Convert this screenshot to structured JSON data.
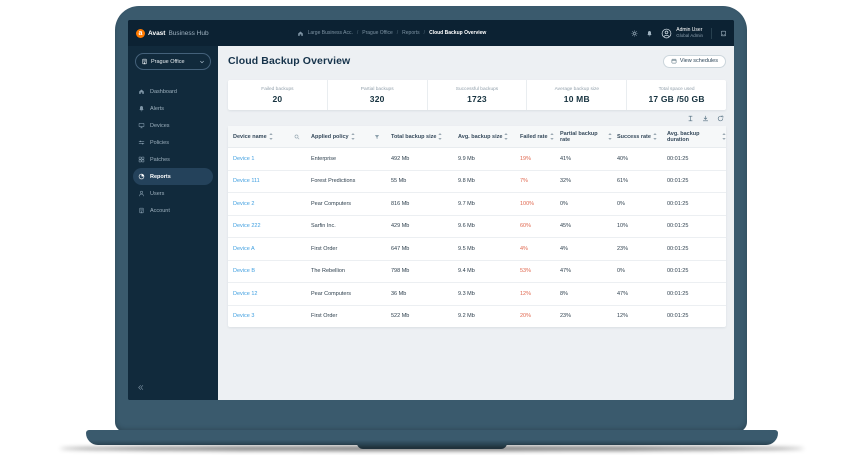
{
  "colors": {
    "accent_orange": "#ff7a00",
    "link_blue": "#3f9fe0",
    "failed_red": "#e0674e",
    "frame": "#3a5a6d",
    "topbar": "#0c2233",
    "sidebar": "#112a3c",
    "active_item_bg": "#24425b",
    "main_bg": "#edf0f3"
  },
  "app": {
    "logo_letter": "a",
    "brand_primary": "Avast",
    "brand_secondary": "Business Hub",
    "breadcrumb": [
      "Large Business Acc.",
      "Prague Office",
      "Reports",
      "Cloud Backup Overview"
    ],
    "user_name": "Admin User",
    "user_role": "Global Admin"
  },
  "sidebar": {
    "org_selector": "Prague Office",
    "items": [
      {
        "label": "Dashboard",
        "icon": "home-icon",
        "active": false
      },
      {
        "label": "Alerts",
        "icon": "bell-icon",
        "active": false
      },
      {
        "label": "Devices",
        "icon": "monitor-icon",
        "active": false
      },
      {
        "label": "Policies",
        "icon": "sliders-icon",
        "active": false
      },
      {
        "label": "Patches",
        "icon": "patch-icon",
        "active": false
      },
      {
        "label": "Reports",
        "icon": "report-icon",
        "active": true
      },
      {
        "label": "Users",
        "icon": "user-icon",
        "active": false
      },
      {
        "label": "Account",
        "icon": "building-icon",
        "active": false
      }
    ]
  },
  "page": {
    "title": "Cloud Backup Overview",
    "view_schedules": "View schedules"
  },
  "stats": [
    {
      "label": "Failed backups",
      "value": "20"
    },
    {
      "label": "Partial backups",
      "value": "320"
    },
    {
      "label": "Successful backups",
      "value": "1723"
    },
    {
      "label": "Average backup size",
      "value": "10 MB"
    },
    {
      "label": "Total space used",
      "value": "17 GB /50 GB"
    }
  ],
  "table": {
    "columns": [
      "Device name",
      "Applied policy",
      "Total backup size",
      "Avg. backup size",
      "Failed rate",
      "Partial backup rate",
      "Success rate",
      "Avg. backup duration"
    ],
    "rows": [
      {
        "device": "Device 1",
        "policy": "Enterprise",
        "total": "492 Mb",
        "avg": "9.9 Mb",
        "failed": "19%",
        "partial": "41%",
        "success": "40%",
        "duration": "00:01:25"
      },
      {
        "device": "Device 111",
        "policy": "Forest Predictions",
        "total": "55 Mb",
        "avg": "9.8 Mb",
        "failed": "7%",
        "partial": "32%",
        "success": "61%",
        "duration": "00:01:25"
      },
      {
        "device": "Device 2",
        "policy": "Pear Computers",
        "total": "816 Mb",
        "avg": "9.7 Mb",
        "failed": "100%",
        "partial": "0%",
        "success": "0%",
        "duration": "00:01:25"
      },
      {
        "device": "Device 222",
        "policy": "Sarfin Inc.",
        "total": "429 Mb",
        "avg": "9.6 Mb",
        "failed": "60%",
        "partial": "45%",
        "success": "10%",
        "duration": "00:01:25"
      },
      {
        "device": "Device A",
        "policy": "First Order",
        "total": "647 Mb",
        "avg": "9.5 Mb",
        "failed": "4%",
        "partial": "4%",
        "success": "23%",
        "duration": "00:01:25"
      },
      {
        "device": "Device B",
        "policy": "The Rebellion",
        "total": "798 Mb",
        "avg": "9.4 Mb",
        "failed": "53%",
        "partial": "47%",
        "success": "0%",
        "duration": "00:01:25"
      },
      {
        "device": "Device 12",
        "policy": "Pear Computers",
        "total": "36 Mb",
        "avg": "9.3 Mb",
        "failed": "12%",
        "partial": "8%",
        "success": "47%",
        "duration": "00:01:25"
      },
      {
        "device": "Device 3",
        "policy": "First Order",
        "total": "522 Mb",
        "avg": "9.2 Mb",
        "failed": "20%",
        "partial": "23%",
        "success": "12%",
        "duration": "00:01:25"
      }
    ]
  }
}
